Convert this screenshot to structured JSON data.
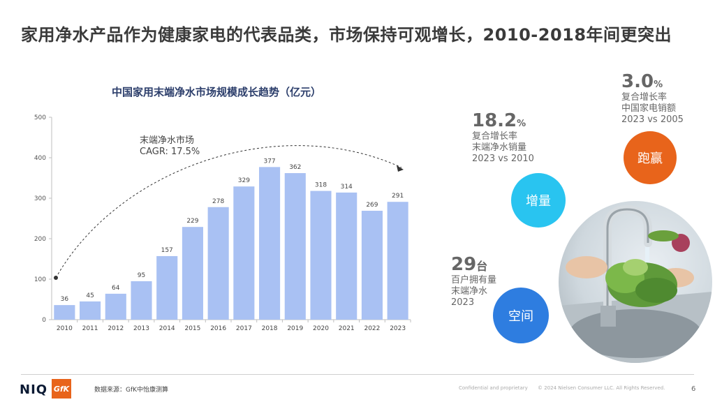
{
  "title": "家用净水产品作为健康家电的代表品类，市场保持可观增长，2010-2018年间更突出",
  "chart_title": "中国家用末端净水市场规模成长趋势（亿元）",
  "annotation": {
    "line1": "末端净水市场",
    "line2": "CAGR: 17.5%"
  },
  "chart_data": {
    "type": "bar",
    "title": "中国家用末端净水市场规模成长趋势（亿元）",
    "categories": [
      "2010",
      "2011",
      "2012",
      "2013",
      "2014",
      "2015",
      "2016",
      "2017",
      "2018",
      "2019",
      "2020",
      "2021",
      "2022",
      "2023"
    ],
    "values": [
      36,
      45,
      64,
      95,
      157,
      229,
      278,
      329,
      377,
      362,
      318,
      314,
      269,
      291
    ],
    "ylim": [
      0,
      500
    ],
    "yticks": [
      0,
      100,
      200,
      300,
      400,
      500
    ],
    "bar_color": "#a9c1f3",
    "grid": false
  },
  "stats": {
    "growth": {
      "value": "18.2",
      "unit": "%",
      "line1": "复合增长率",
      "line2": "末端净水销量",
      "line3": "2023 vs 2010",
      "badge": "增量",
      "color": "#29c4f0"
    },
    "lead": {
      "value": "3.0",
      "unit": "%",
      "line1": "复合增长率",
      "line2": "中国家电销额",
      "line3": "2023 vs 2005",
      "badge": "跑赢",
      "color": "#e8641b"
    },
    "space": {
      "value": "29",
      "unit": "台",
      "line1": "百户拥有量",
      "line2": "末端净水",
      "line3": "2023",
      "badge": "空间",
      "color": "#2e7de0"
    }
  },
  "photo_icon": "kitchen-faucet-vegetables-photo",
  "footer": {
    "logo_niq": "NIQ",
    "logo_gfk": "GfK",
    "source": "数据来源：GfK中怡康测算",
    "confidential": "Confidential and proprietary",
    "copyright": "© 2024 Nielsen Consumer LLC. All Rights Reserved.",
    "page": "6"
  }
}
